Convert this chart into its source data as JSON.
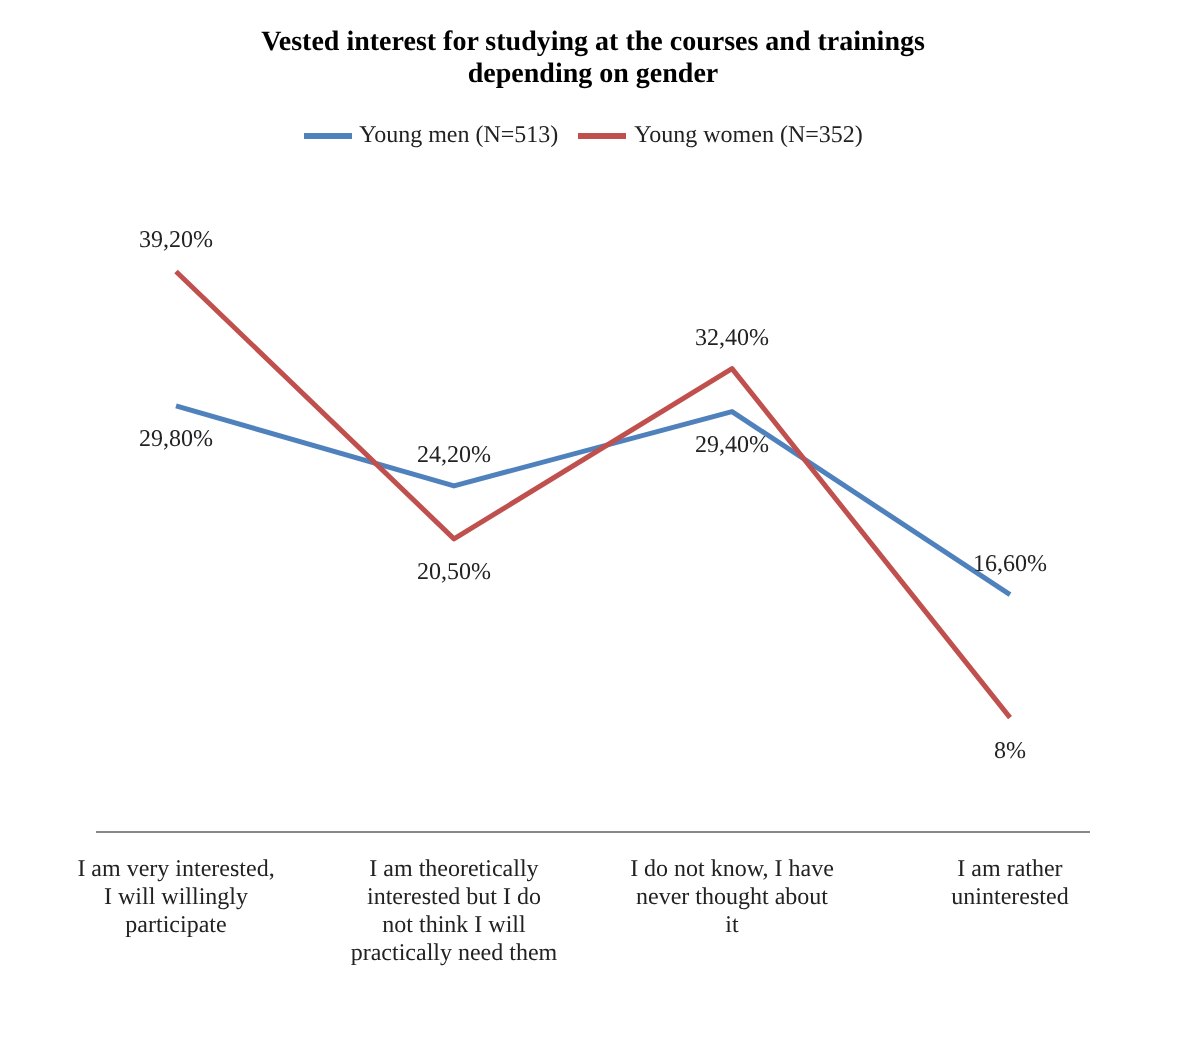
{
  "chart_data": {
    "type": "line",
    "title": "Vested interest for studying at the courses and trainings depending on gender",
    "categories": [
      "I am very interested, I will willingly participate",
      "I am theoretically interested but I do not think I will practically need them",
      "I do not know, I have never thought about it",
      "I am rather uninterested"
    ],
    "series": [
      {
        "name": "Young men (N=513)",
        "color": "#4f81bd",
        "values": [
          29.8,
          24.2,
          29.4,
          16.6
        ],
        "value_labels": [
          "29,80%",
          "24,20%",
          "29,40%",
          "16,60%"
        ]
      },
      {
        "name": "Young women (N=352)",
        "color": "#c0504d",
        "values": [
          39.2,
          20.5,
          32.4,
          8
        ],
        "value_labels": [
          "39,20%",
          "20,50%",
          "32,40%",
          "8%"
        ]
      }
    ],
    "legend": "top",
    "marker": "none"
  }
}
